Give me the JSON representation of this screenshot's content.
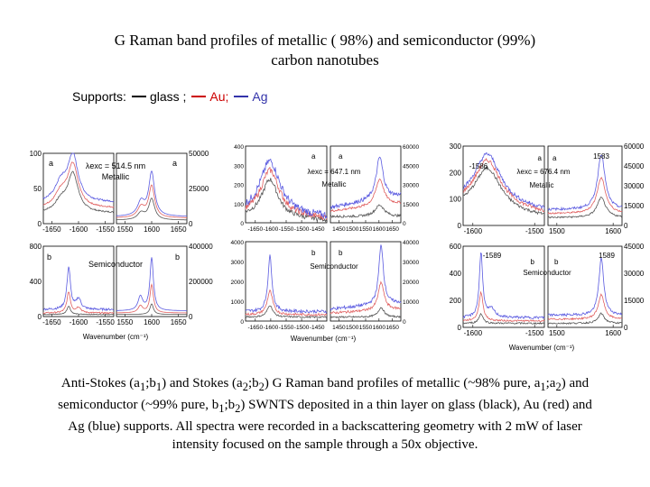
{
  "title_line1": "G Raman band profiles of metallic ( 98%) and semiconductor  (99%)",
  "title_line2": "carbon nanotubes",
  "supports": {
    "prefix": "Supports:",
    "items": [
      {
        "label": "glass ;",
        "color": "#000000"
      },
      {
        "label": "Au;",
        "color": "#cc0000"
      },
      {
        "label": "Ag",
        "color": "#3333aa"
      }
    ]
  },
  "caption": {
    "seg1": "Anti-Stokes (a",
    "seg2": ";b",
    "seg3": ") and Stokes (a",
    "seg4": ";b",
    "seg5": ") G Raman band profiles of metallic (~98% pure, a",
    "seg6": ";a",
    "seg7": ") and semiconductor (~99% pure, b",
    "seg8": ";b",
    "seg9": ") SWNTS deposited in a thin layer on glass (black), Au (red) and Ag (blue) supports. All spectra were recorded in a backscattering geometry with 2 mW of laser intensity focused on the sample through a 50x objective.",
    "sub1": "1",
    "sub2": "2"
  },
  "colors": {
    "glass": "#555555",
    "au": "#e06060",
    "ag": "#5a5ae0"
  },
  "chart_data": [
    {
      "type": "line",
      "panel_labels": [
        "a1",
        "a2"
      ],
      "laser": "λexc = 514.5 nm",
      "label": "Metallic",
      "xlabel": "",
      "ylabel": "",
      "left_xticks": [
        "-1650",
        "-1600",
        "-1550"
      ],
      "right_xticks": [
        "1550",
        "1600",
        "1650"
      ],
      "left_yticks": [
        "100",
        "50",
        "0"
      ],
      "right_yticks": [
        "50000",
        "25000",
        "0"
      ],
      "series": [
        {
          "name": "glass",
          "left_peak": -1570,
          "right_peak": 1592
        },
        {
          "name": "Au",
          "left_peak": -1570,
          "right_peak": 1592
        },
        {
          "name": "Ag",
          "left_peak": -1570,
          "right_peak": 1592
        }
      ]
    },
    {
      "type": "line",
      "panel_labels": [
        "b1",
        "b2"
      ],
      "label": "Semiconductor",
      "xlabel": "Wavenumber (cm⁻¹)",
      "left_xticks": [
        "-1650",
        "-1600",
        "-1550"
      ],
      "right_xticks": [
        "1550",
        "1600",
        "1650"
      ],
      "left_yticks": [
        "800",
        "400",
        "0"
      ],
      "right_yticks": [
        "400000",
        "200000",
        "0"
      ],
      "series": [
        {
          "name": "glass",
          "left_peak": -1592,
          "right_peak": 1592
        },
        {
          "name": "Au",
          "left_peak": -1592,
          "right_peak": 1592
        },
        {
          "name": "Ag",
          "left_peak": -1592,
          "right_peak": 1592
        }
      ]
    },
    {
      "type": "line",
      "panel_labels": [
        "a1",
        "a2"
      ],
      "laser": "λexc = 647.1 nm",
      "label": "Metallic",
      "left_xticks": [
        "-1650",
        "-1600",
        "-1550",
        "-1500",
        "-1450"
      ],
      "right_xticks": [
        "1450",
        "1500",
        "1550",
        "1600",
        "1650"
      ],
      "left_yticks": [
        "400",
        "300",
        "200",
        "100",
        "0"
      ],
      "right_yticks": [
        "60000",
        "45000",
        "30000",
        "15000",
        "0"
      ]
    },
    {
      "type": "line",
      "panel_labels": [
        "b1",
        "b2"
      ],
      "label": "Semiconductor",
      "xlabel": "Wavenumber (cm⁻¹)",
      "left_xticks": [
        "-1650",
        "-1600",
        "-1550",
        "-1500",
        "-1450"
      ],
      "right_xticks": [
        "1450",
        "1500",
        "1550",
        "1600",
        "1650"
      ],
      "left_yticks": [
        "4000",
        "3000",
        "2000",
        "1000",
        "0"
      ],
      "right_yticks": [
        "40000",
        "30000",
        "20000",
        "10000",
        "0"
      ]
    },
    {
      "type": "line",
      "panel_labels": [
        "a1",
        "a2"
      ],
      "laser": "λexc = 676.4 nm",
      "label": "Metallic",
      "annotations": [
        "-1586",
        "1583"
      ],
      "left_xticks": [
        "-1600",
        "-1500"
      ],
      "right_xticks": [
        "1500",
        "1600"
      ],
      "left_yticks": [
        "300",
        "200",
        "100",
        "0"
      ],
      "right_yticks": [
        "60000",
        "45000",
        "30000",
        "15000",
        "0"
      ]
    },
    {
      "type": "line",
      "panel_labels": [
        "b1",
        "b2"
      ],
      "label": "Semiconductor",
      "annotations": [
        "-1589",
        "1589"
      ],
      "xlabel": "Wavenumber (cm⁻¹)",
      "left_xticks": [
        "-1600",
        "-1500"
      ],
      "right_xticks": [
        "1500",
        "1600"
      ],
      "left_yticks": [
        "600",
        "400",
        "200",
        "0"
      ],
      "right_yticks": [
        "45000",
        "30000",
        "15000",
        "0"
      ]
    }
  ]
}
